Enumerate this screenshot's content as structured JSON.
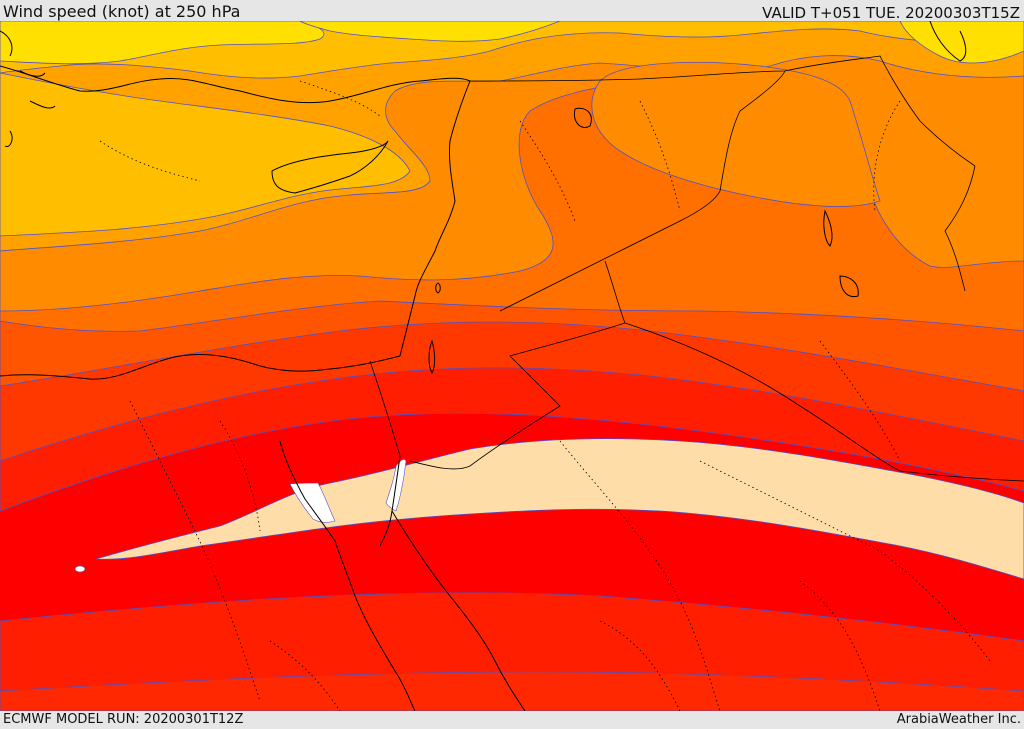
{
  "header": {
    "title": "Wind speed (knot) at 250 hPa",
    "valid_time": "VALID T+051 TUE. 20200303T15Z"
  },
  "footer": {
    "model_run": "ECMWF MODEL RUN: 20200301T12Z",
    "credit": "ArabiaWeather Inc."
  },
  "map": {
    "field": "wind speed",
    "level_hpa": 250,
    "units": "knot",
    "palette": [
      "#ffe000",
      "#ffbf00",
      "#ffa200",
      "#ff8c00",
      "#ff7000",
      "#ff5500",
      "#ff3800",
      "#ff1e00",
      "#ff0000",
      "#ffe0a8",
      "#ffffff"
    ],
    "contour_color": "#5050c8",
    "border_color": "#000000"
  }
}
